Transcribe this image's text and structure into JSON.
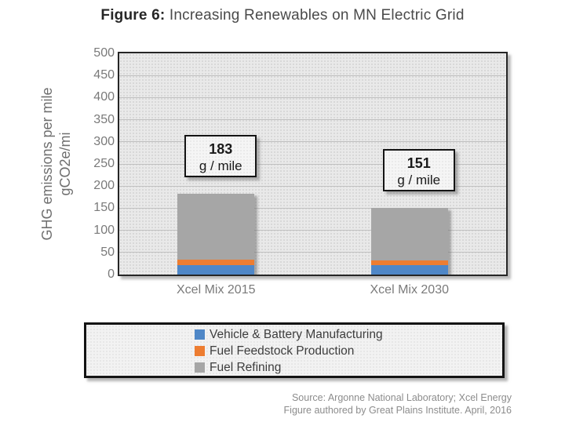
{
  "title": {
    "prefix": "Figure 6:",
    "rest": " Increasing Renewables on MN Electric Grid"
  },
  "chart_data": {
    "type": "bar",
    "stacked": true,
    "title": "Figure 6: Increasing Renewables on MN Electric Grid",
    "categories": [
      "Xcel Mix 2015",
      "Xcel Mix 2030"
    ],
    "series": [
      {
        "name": "Vehicle & Battery Manufacturing",
        "color": "#4F87C7",
        "values": [
          22,
          22
        ]
      },
      {
        "name": "Fuel Feedstock Production",
        "color": "#ED7D31",
        "values": [
          12,
          10
        ]
      },
      {
        "name": "Fuel Refining",
        "color": "#A6A6A6",
        "values": [
          149,
          119
        ]
      }
    ],
    "totals": [
      183,
      151
    ],
    "data_labels": [
      {
        "value": "183",
        "unit": "g / mile"
      },
      {
        "value": "151",
        "unit": "g / mile"
      }
    ],
    "ylabel_line1": "GHG emissions per mile",
    "ylabel_line2": "gCO2e/mi",
    "xlabel": "",
    "ylim": [
      0,
      500
    ],
    "ytick_step": 50,
    "yticks": [
      0,
      50,
      100,
      150,
      200,
      250,
      300,
      350,
      400,
      450,
      500
    ],
    "grid": true,
    "legend_position": "bottom",
    "plot_background": "#e9e9e9",
    "gridline_color": "#c0c0c0"
  },
  "source": {
    "line1": "Source: Argonne National Laboratory; Xcel Energy",
    "line2": "Figure authored by Great Plains Institute. April, 2016"
  }
}
